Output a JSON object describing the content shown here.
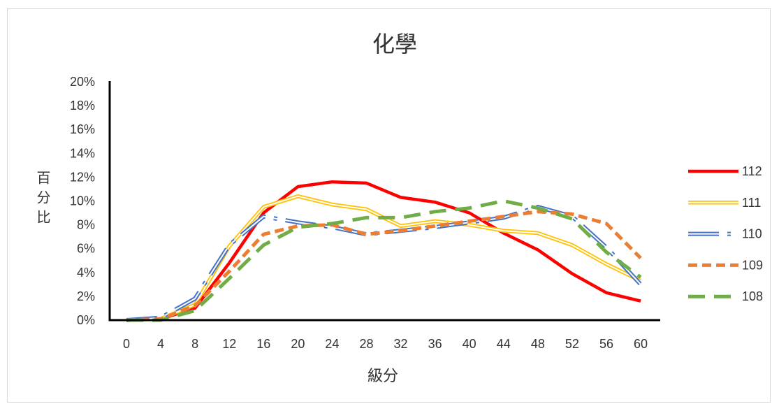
{
  "chart_data": {
    "type": "line",
    "title": "化學",
    "xlabel": "級分",
    "ylabel": "百分比",
    "categories": [
      "0",
      "4",
      "8",
      "12",
      "16",
      "20",
      "24",
      "28",
      "32",
      "36",
      "40",
      "44",
      "48",
      "52",
      "56",
      "60"
    ],
    "ylim": [
      0,
      20
    ],
    "yticks": [
      "0%",
      "2%",
      "4%",
      "6%",
      "8%",
      "10%",
      "12%",
      "14%",
      "16%",
      "18%",
      "20%"
    ],
    "grid": false,
    "legend_position": "right",
    "series": [
      {
        "name": "112",
        "color": "#FF0000",
        "line_style": "solid",
        "values": [
          0,
          0.1,
          1.0,
          4.8,
          9.0,
          11.2,
          11.6,
          11.5,
          10.3,
          9.9,
          9.0,
          7.3,
          5.9,
          3.9,
          2.3,
          1.6
        ]
      },
      {
        "name": "111",
        "color": "#FFC000",
        "line_style": "double",
        "values": [
          0,
          0.1,
          1.3,
          6.2,
          9.5,
          10.4,
          9.7,
          9.3,
          7.9,
          8.3,
          8.0,
          7.5,
          7.3,
          6.3,
          4.7,
          3.3
        ]
      },
      {
        "name": "110",
        "color": "#4472C4",
        "line_style": "double-dash-dot",
        "values": [
          0,
          0.2,
          1.8,
          6.3,
          8.7,
          8.2,
          7.8,
          7.2,
          7.5,
          7.8,
          8.2,
          8.6,
          9.5,
          8.7,
          6.1,
          3.0
        ]
      },
      {
        "name": "109",
        "color": "#ED7D31",
        "line_style": "dashed",
        "values": [
          0,
          0.1,
          1.2,
          4.1,
          7.2,
          7.9,
          8.0,
          7.2,
          7.5,
          7.9,
          8.3,
          8.7,
          9.1,
          8.9,
          8.1,
          5.2
        ]
      },
      {
        "name": "108",
        "color": "#70AD47",
        "line_style": "long-dashed",
        "values": [
          0,
          0,
          0.8,
          3.5,
          6.3,
          7.8,
          8.1,
          8.6,
          8.6,
          9.1,
          9.4,
          10.0,
          9.4,
          8.5,
          5.7,
          3.6
        ]
      }
    ]
  }
}
